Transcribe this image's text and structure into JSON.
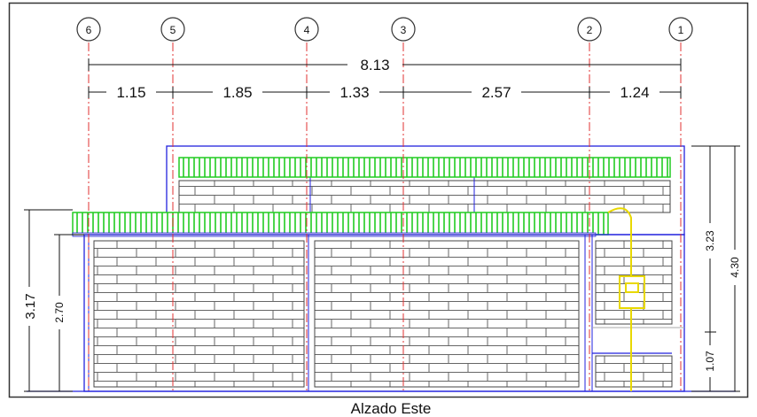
{
  "drawing": {
    "caption": "Alzado Este",
    "axes": [
      {
        "label": "6"
      },
      {
        "label": "5"
      },
      {
        "label": "4"
      },
      {
        "label": "3"
      },
      {
        "label": "2"
      },
      {
        "label": "1"
      }
    ],
    "dimensions": {
      "overall": "8.13",
      "segments": [
        "1.15",
        "1.85",
        "1.33",
        "2.57",
        "1.24"
      ],
      "left_outer": "3.17",
      "left_inner": "2.70",
      "right_upper": "3.23",
      "right_total": "4.30",
      "right_lower": "1.07"
    },
    "colors": {
      "wall_outline": "#2222dd",
      "axis_line": "#e03030",
      "canopy": "#22cc22",
      "dimension": "#111111",
      "utility": "#e8d800",
      "brick": "#666666"
    }
  }
}
